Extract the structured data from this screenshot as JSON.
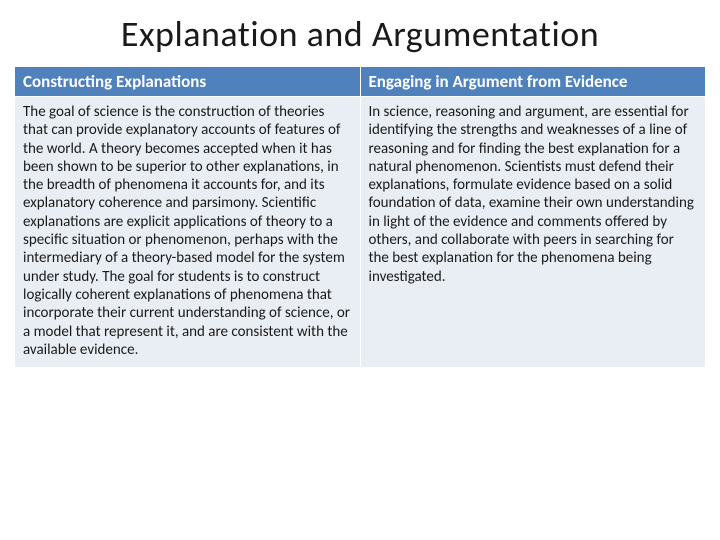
{
  "slide": {
    "title": "Explanation and Argumentation",
    "table": {
      "header_bg": "#4f81bd",
      "header_fg": "#ffffff",
      "cell_bg": "#e9edf4",
      "cell_fg": "#1a1a1a",
      "columns": [
        {
          "header": "Constructing Explanations"
        },
        {
          "header": "Engaging in Argument from Evidence"
        }
      ],
      "row": {
        "left": "The goal of science is the construction of theories that can provide explanatory accounts of features of the world. A theory becomes accepted when it has been shown to be superior to other explanations, in the breadth of phenomena it accounts for, and its explanatory coherence and parsimony. Scientific explanations are explicit applications of theory to a specific situation or phenomenon, perhaps with the intermediary of a theory-based model for the system under study. The goal for students is to construct logically coherent explanations of phenomena that incorporate their current understanding of science, or a model that represent it, and are consistent with the available evidence.",
        "right": "In science, reasoning and argument, are essential for identifying the strengths and weaknesses of a line of reasoning and for finding the best explanation for a natural phenomenon. Scientists must defend their explanations, formulate evidence based on a solid foundation of data, examine their own understanding in light of the evidence and comments offered by others, and collaborate with peers in searching for the best explanation for the phenomena being investigated."
      }
    }
  }
}
